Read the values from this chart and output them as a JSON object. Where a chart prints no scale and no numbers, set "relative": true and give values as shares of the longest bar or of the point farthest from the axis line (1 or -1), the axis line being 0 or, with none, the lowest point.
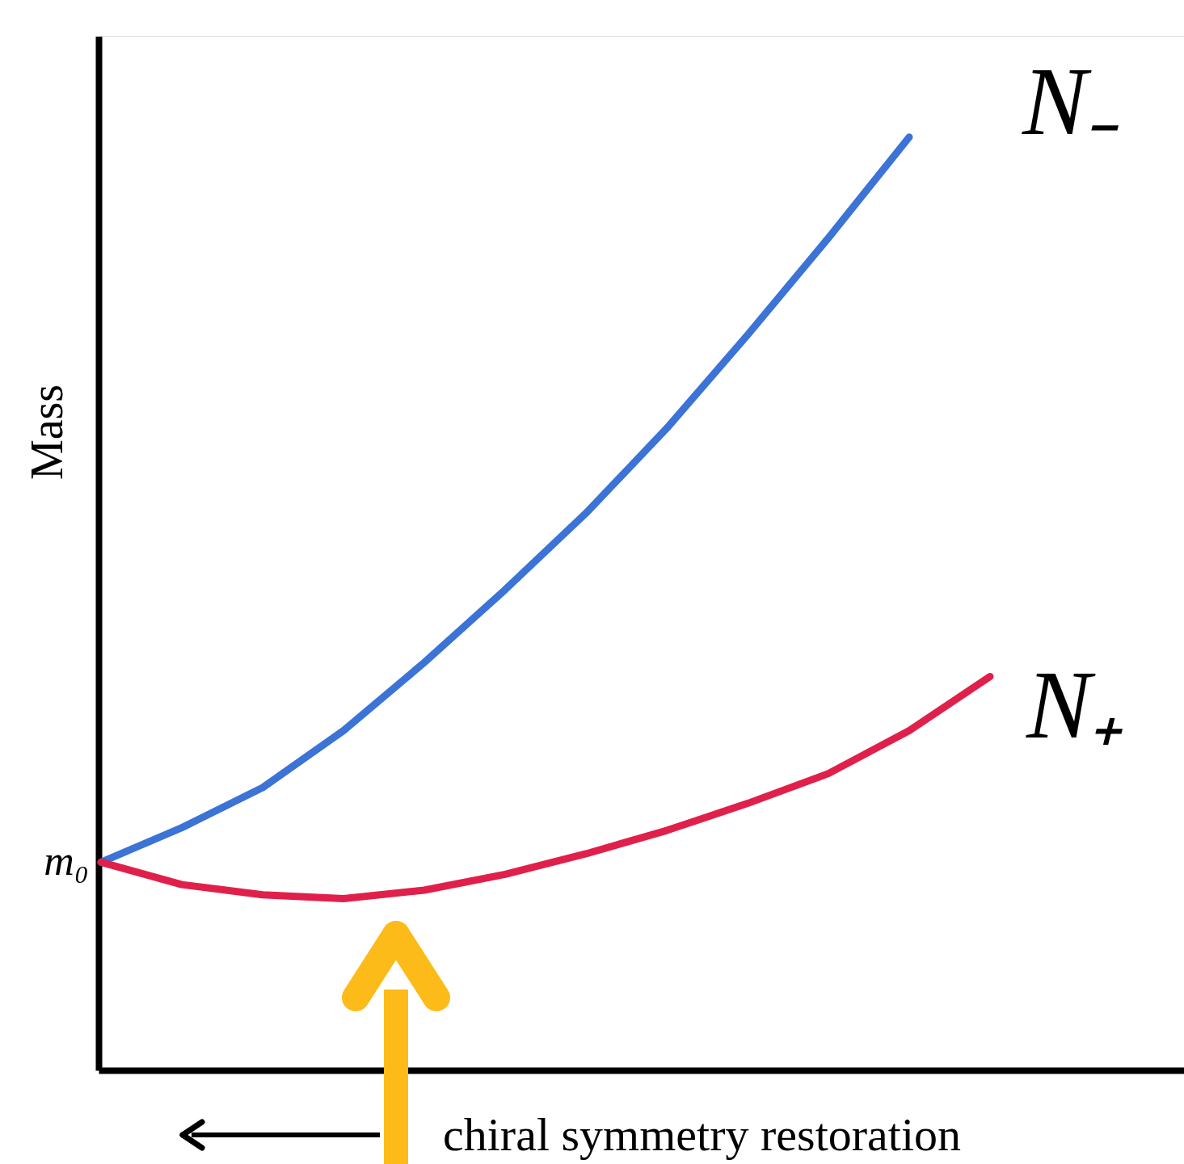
{
  "chart_data": {
    "type": "line",
    "relative": true,
    "ylabel": "Mass",
    "legend": false,
    "marker": "none",
    "line_style": "solid",
    "categories": [
      null,
      null,
      null,
      null,
      null,
      null,
      null,
      null,
      null,
      null,
      null,
      null
    ],
    "series": [
      {
        "name": "N₋",
        "color": "#3b73d6",
        "values": [
          0.223,
          0.26,
          0.303,
          0.364,
          0.437,
          0.515,
          0.597,
          0.688,
          0.788,
          0.892,
          1.0,
          null
        ]
      },
      {
        "name": "N₊",
        "color": "#e0204a",
        "values": [
          0.223,
          0.199,
          0.188,
          0.184,
          0.193,
          0.21,
          0.232,
          0.257,
          0.286,
          0.318,
          0.364,
          0.422
        ]
      }
    ],
    "annotations": [
      "m₀",
      "chiral symmetry restoration"
    ]
  }
}
